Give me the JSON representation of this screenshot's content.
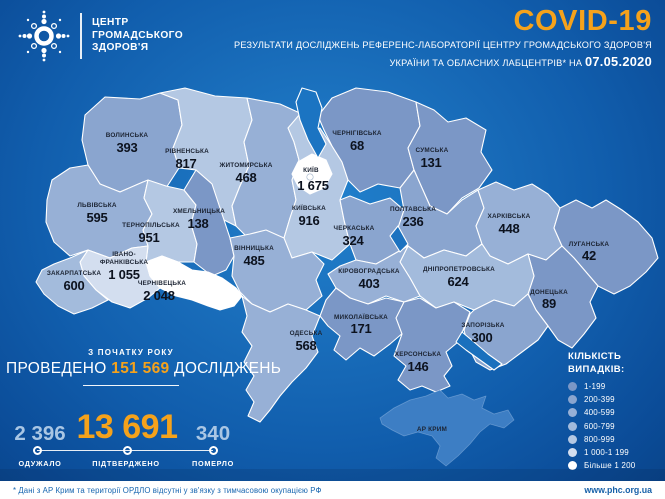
{
  "header": {
    "org_name_lines": [
      "ЦЕНТР",
      "ГРОМАДСЬКОГО",
      "ЗДОРОВ'Я"
    ],
    "title": "COVID-19",
    "subtitle_line1": "РЕЗУЛЬТАТИ ДОСЛІДЖЕНЬ РЕФЕРЕНС-ЛАБОРАТОРІЇ ЦЕНТРУ ГРОМАДСЬКОГО ЗДОРОВ'Я",
    "subtitle_line2_prefix": "УКРАЇНИ ТА ОБЛАСНИХ ЛАБЦЕНТРІВ* НА",
    "date": "07.05.2020",
    "accent_color": "#F5A21B"
  },
  "map": {
    "regions": [
      {
        "id": "volyn",
        "name": "ВОЛИНСЬКА",
        "value": "393",
        "bucket": 1
      },
      {
        "id": "rivne",
        "name": "РІВНЕНСЬКА",
        "value": "817",
        "bucket": 4
      },
      {
        "id": "zhytomyr",
        "name": "ЖИТОМИРСЬКА",
        "value": "468",
        "bucket": 2
      },
      {
        "id": "kyiv_oblast",
        "name": "КИЇВСЬКА",
        "value": "916",
        "bucket": 4
      },
      {
        "id": "kyiv_city",
        "name": "КИЇВ",
        "value": "1 675",
        "bucket": 6
      },
      {
        "id": "chernihiv",
        "name": "ЧЕРНІГІВСЬКА",
        "value": "68",
        "bucket": 0
      },
      {
        "id": "sumy",
        "name": "СУМСЬКА",
        "value": "131",
        "bucket": 0
      },
      {
        "id": "lviv",
        "name": "ЛЬВІВСЬКА",
        "value": "595",
        "bucket": 2
      },
      {
        "id": "ternopil",
        "name": "ТЕРНОПІЛЬСЬКА",
        "value": "951",
        "bucket": 4
      },
      {
        "id": "khmelnytskyi",
        "name": "ХМЕЛЬНИЦЬКА",
        "value": "138",
        "bucket": 0
      },
      {
        "id": "ivano_frankivsk",
        "name": "ІВАНО-\nФРАНКІВСЬКА",
        "value": "1 055",
        "bucket": 5
      },
      {
        "id": "zakarpattia",
        "name": "ЗАКАРПАТСЬКА",
        "value": "600",
        "bucket": 3
      },
      {
        "id": "chernivtsi",
        "name": "ЧЕРНІВЕЦЬКА",
        "value": "2 048",
        "bucket": 6
      },
      {
        "id": "vinnytsia",
        "name": "ВІННИЦЬКА",
        "value": "485",
        "bucket": 2
      },
      {
        "id": "cherkasy",
        "name": "ЧЕРКАСЬКА",
        "value": "324",
        "bucket": 1
      },
      {
        "id": "poltava",
        "name": "ПОЛТАВСЬКА",
        "value": "236",
        "bucket": 1
      },
      {
        "id": "kharkiv",
        "name": "ХАРКІВСЬКА",
        "value": "448",
        "bucket": 2
      },
      {
        "id": "luhansk",
        "name": "ЛУГАНСЬКА",
        "value": "42",
        "bucket": 0
      },
      {
        "id": "kirovohrad",
        "name": "КІРОВОГРАДСЬКА",
        "value": "403",
        "bucket": 2
      },
      {
        "id": "dnipro",
        "name": "ДНІПРОПЕТРОВСЬКА",
        "value": "624",
        "bucket": 3
      },
      {
        "id": "donetsk",
        "name": "ДОНЕЦЬКА",
        "value": "89",
        "bucket": 0
      },
      {
        "id": "zaporizhzhia",
        "name": "ЗАПОРІЗЬКА",
        "value": "300",
        "bucket": 1
      },
      {
        "id": "mykolaiv",
        "name": "МИКОЛАЇВСЬКА",
        "value": "171",
        "bucket": 0
      },
      {
        "id": "odesa",
        "name": "ОДЕСЬКА",
        "value": "568",
        "bucket": 2
      },
      {
        "id": "kherson",
        "name": "ХЕРСОНСЬКА",
        "value": "146",
        "bucket": 0
      },
      {
        "id": "crimea",
        "name": "АР КРИМ",
        "value": "",
        "bucket": null
      }
    ]
  },
  "tests": {
    "small_label": "З ПОЧАТКУ РОКУ",
    "prefix": "ПРОВЕДЕНО",
    "count": "151 569",
    "suffix": "ДОСЛІДЖЕНЬ"
  },
  "stats": {
    "recovered": {
      "value": "2 396",
      "label": "ОДУЖАЛО"
    },
    "confirmed": {
      "value": "13 691",
      "label": "ПІДТВЕРДЖЕНО"
    },
    "died": {
      "value": "340",
      "label": "ПОМЕРЛО"
    }
  },
  "legend": {
    "title_lines": [
      "КІЛЬКІСТЬ",
      "ВИПАДКІВ:"
    ],
    "items": [
      {
        "label": "1-199",
        "color": "#7B97C6"
      },
      {
        "label": "200-399",
        "color": "#8AA5CF"
      },
      {
        "label": "400-599",
        "color": "#97B0D6"
      },
      {
        "label": "600-799",
        "color": "#A3BBDC"
      },
      {
        "label": "800-999",
        "color": "#B4C8E3"
      },
      {
        "label": "1 000-1 199",
        "color": "#D3DEEF"
      },
      {
        "label": "Більше 1 200",
        "color": "#FFFFFF"
      }
    ]
  },
  "footer": {
    "note": "* Дані з АР Крим та території ОРДЛО відсутні у зв'язку з тимчасовою окупацією РФ",
    "site": "www.phc.org.ua"
  }
}
